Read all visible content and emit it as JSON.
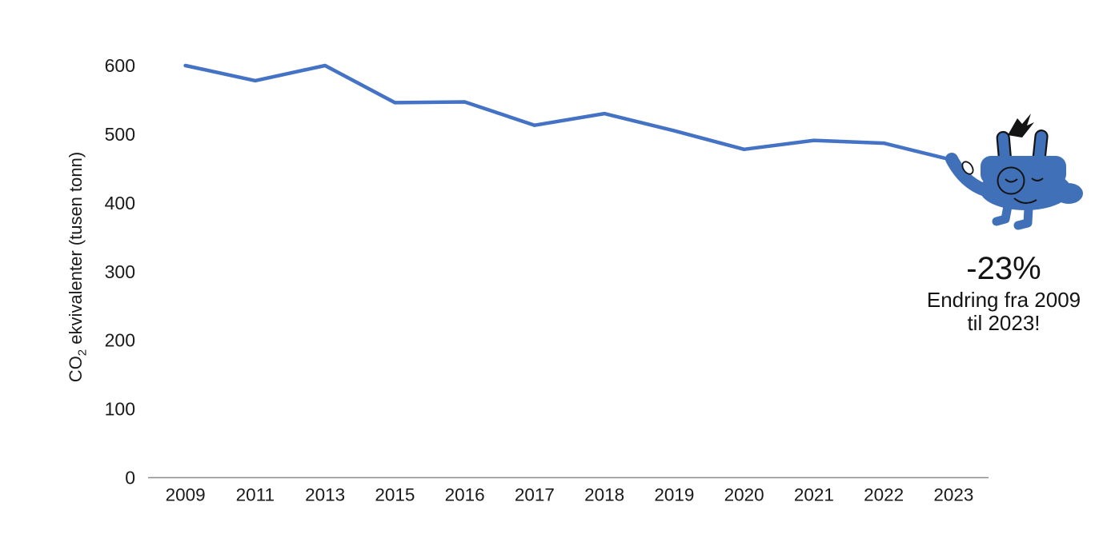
{
  "chart_data": {
    "type": "line",
    "title": "",
    "categories": [
      "2009",
      "2011",
      "2013",
      "2015",
      "2016",
      "2017",
      "2018",
      "2019",
      "2020",
      "2021",
      "2022",
      "2023"
    ],
    "values": [
      600,
      578,
      600,
      546,
      547,
      513,
      530,
      505,
      478,
      491,
      487,
      462
    ],
    "ylabel": "CO₂ ekvivalenter (tusen tonn)",
    "ylabel_parts": {
      "prefix": "CO",
      "sub": "2",
      "suffix": " ekvivalenter (tusen tonn)"
    },
    "yticks": [
      0,
      100,
      200,
      300,
      400,
      500,
      600
    ],
    "ylim": [
      0,
      600
    ],
    "grid": false,
    "legend": "none",
    "line_color": "#4472C4",
    "axis_color": "#8C8C8C",
    "text_color": "#1A1A1A"
  },
  "annotation": {
    "value": "-23%",
    "line1": "Endring fra 2009",
    "line2": "til 2023!"
  },
  "mascot": {
    "icon": "plug-mascot",
    "body_color": "#4070B8",
    "outline_color": "#141414",
    "nail_color": "#ffffff"
  }
}
